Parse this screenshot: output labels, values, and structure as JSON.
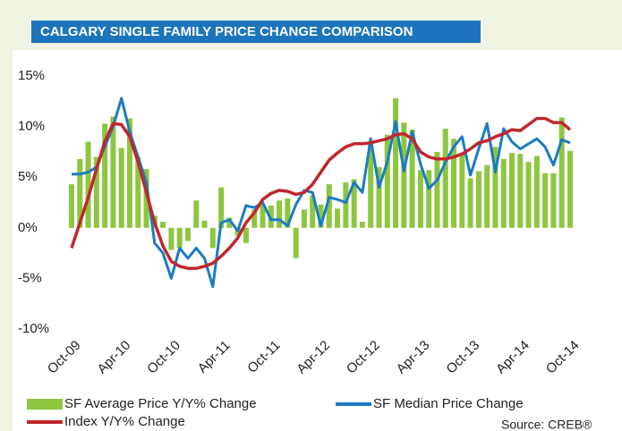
{
  "chart_data": {
    "type": "bar_line",
    "title": "CALGARY SINGLE FAMILY PRICE CHANGE COMPARISON",
    "source": "Source: CREB®",
    "categories": [
      "Oct-09",
      null,
      null,
      null,
      null,
      null,
      "Apr-10",
      null,
      null,
      null,
      null,
      null,
      "Oct-10",
      null,
      null,
      null,
      null,
      null,
      "Apr-11",
      null,
      null,
      null,
      null,
      null,
      "Oct-11",
      null,
      null,
      null,
      null,
      null,
      "Apr-12",
      null,
      null,
      null,
      null,
      null,
      "Oct-12",
      null,
      null,
      null,
      null,
      null,
      "Apr-13",
      null,
      null,
      null,
      null,
      null,
      "Oct-13",
      null,
      null,
      null,
      null,
      null,
      "Apr-14",
      null,
      null,
      null,
      null,
      null,
      "Oct-14"
    ],
    "series": [
      {
        "name": "SF Average Price Y/Y% Change",
        "color": "#8dc63f",
        "kind": "bar",
        "values": [
          4.3,
          6.8,
          8.5,
          7.0,
          10.3,
          11.0,
          7.9,
          10.8,
          7.0,
          5.8,
          1.2,
          0.6,
          -2.2,
          -2.0,
          -1.3,
          2.7,
          0.7,
          -2.0,
          4.0,
          1.0,
          -0.8,
          -1.5,
          1.8,
          2.3,
          2.2,
          2.7,
          2.9,
          -3.0,
          1.8,
          3.2,
          2.3,
          4.3,
          1.9,
          4.5,
          4.8,
          0.6,
          8.5,
          6.0,
          9.2,
          12.8,
          10.4,
          9.7,
          5.7,
          5.7,
          7.5,
          9.8,
          8.8,
          7.4,
          4.9,
          5.6,
          6.2,
          8.0,
          6.8,
          7.4,
          7.3,
          6.5,
          7.1,
          5.4,
          5.4,
          10.9,
          7.6
        ]
      },
      {
        "name": "SF Median Price Change",
        "color": "#1b7bc2",
        "kind": "line",
        "values": [
          5.3,
          5.3,
          5.5,
          6.0,
          8.0,
          10.0,
          12.8,
          9.5,
          7.0,
          4.5,
          -1.5,
          -2.5,
          -5.0,
          -2.0,
          -3.0,
          -2.0,
          -3.0,
          -5.8,
          0.5,
          0.8,
          -0.3,
          2.2,
          2.0,
          2.5,
          0.8,
          0.8,
          0.2,
          2.3,
          3.7,
          3.5,
          0.2,
          3.0,
          2.8,
          2.5,
          4.5,
          3.5,
          8.8,
          4.0,
          6.5,
          10.5,
          5.6,
          9.5,
          6.3,
          3.9,
          4.7,
          6.5,
          8.0,
          9.0,
          5.2,
          7.8,
          10.3,
          5.5,
          9.8,
          8.5,
          7.8,
          8.3,
          8.8,
          8.0,
          6.2,
          8.7,
          8.4
        ]
      },
      {
        "name": "Index Y/Y% Change",
        "color": "#c1272d",
        "kind": "line",
        "values": [
          -2.0,
          0.5,
          3.0,
          5.8,
          8.5,
          10.3,
          10.2,
          9.0,
          6.5,
          3.5,
          0.5,
          -1.8,
          -3.3,
          -3.8,
          -4.0,
          -4.0,
          -3.8,
          -3.5,
          -2.8,
          -2.0,
          -1.0,
          0.5,
          1.5,
          2.8,
          3.4,
          3.7,
          3.6,
          3.3,
          3.5,
          4.3,
          5.5,
          6.7,
          7.4,
          8.0,
          8.3,
          8.3,
          8.4,
          8.6,
          8.8,
          9.2,
          9.3,
          8.8,
          7.5,
          7.0,
          6.8,
          6.8,
          7.0,
          7.3,
          7.8,
          8.4,
          8.6,
          9.0,
          9.3,
          9.7,
          9.6,
          10.2,
          10.8,
          10.8,
          10.4,
          10.4,
          9.7
        ]
      }
    ],
    "ylim": [
      -10,
      15
    ],
    "yticks": [
      {
        "value": -10,
        "label": "-10%"
      },
      {
        "value": -5,
        "label": "-5%"
      },
      {
        "value": 0,
        "label": "0%"
      },
      {
        "value": 5,
        "label": "5%"
      },
      {
        "value": 10,
        "label": "10%"
      },
      {
        "value": 15,
        "label": "15%"
      }
    ],
    "grid": false
  }
}
